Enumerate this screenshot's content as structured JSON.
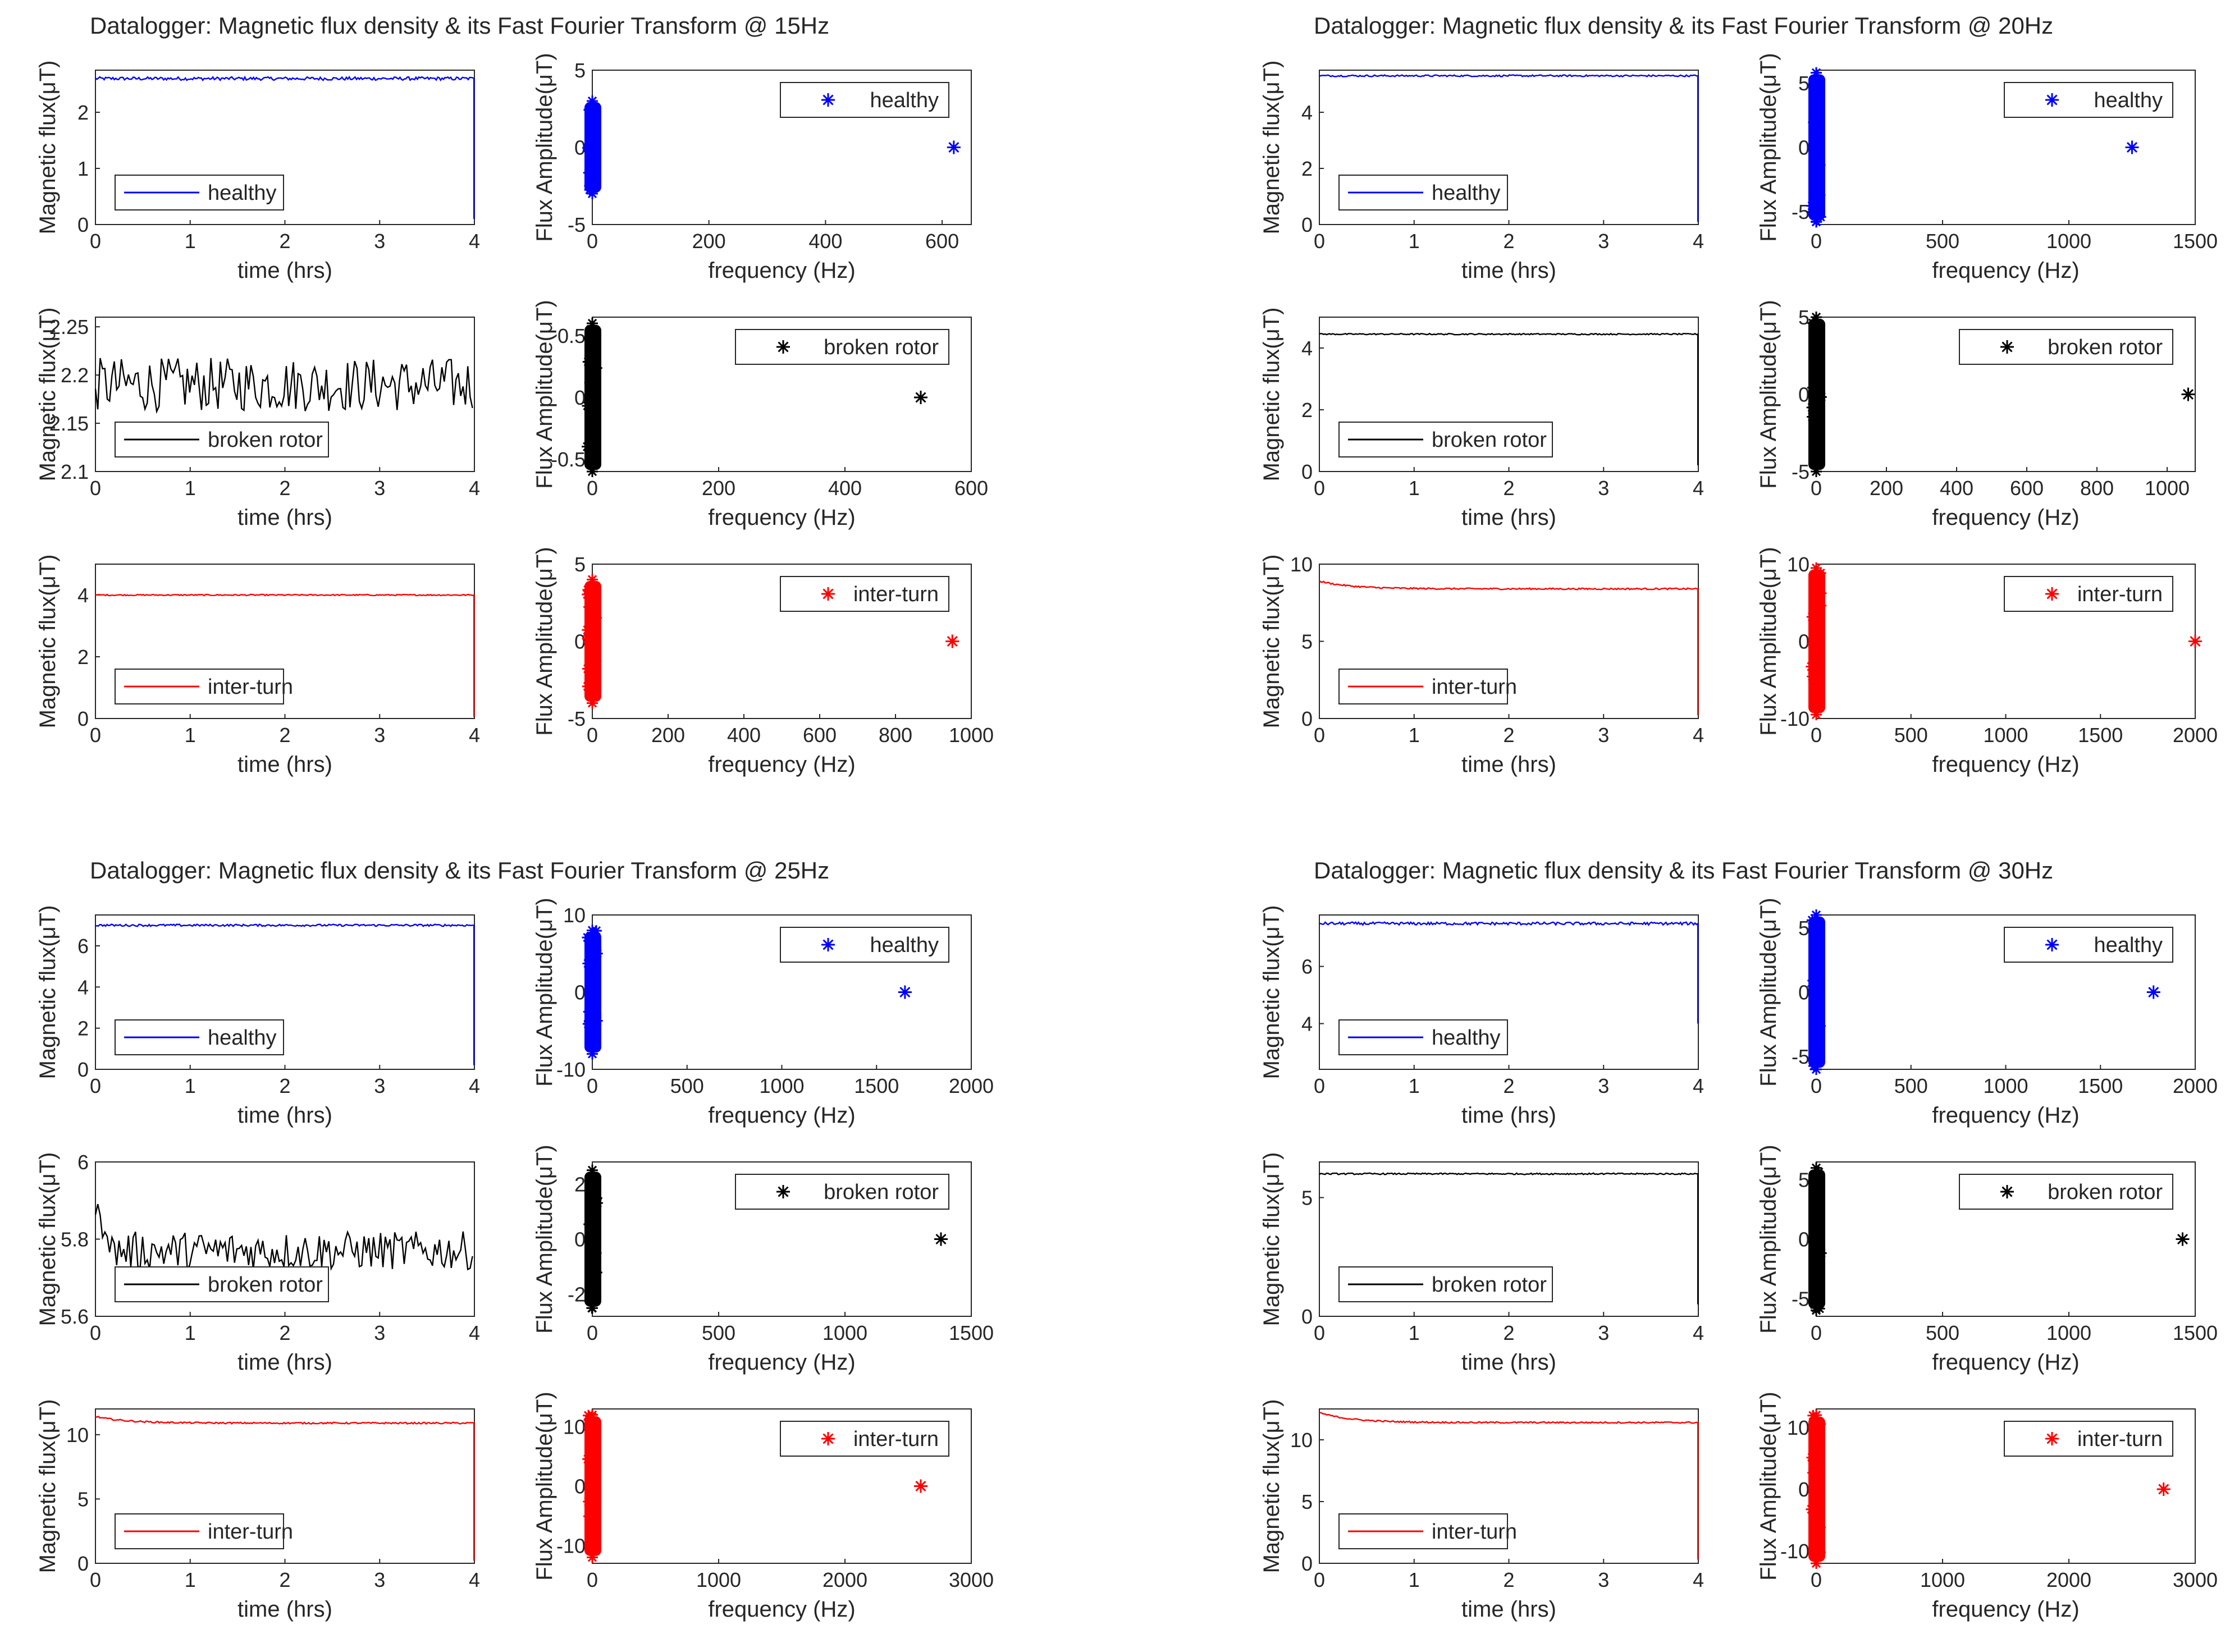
{
  "colors": {
    "blue": "#0000ff",
    "black": "#000000",
    "red": "#ff0000",
    "axis": "#262626",
    "legendBorder": "#262626",
    "background": "#ffffff"
  },
  "axis_labels": {
    "time_x": "time (hrs)",
    "freq_x": "frequency (Hz)",
    "time_y": "Magnetic flux(μT)",
    "freq_y": "Flux Amplitude(μT)"
  },
  "chart_data": [
    {
      "title": "Datalogger: Magnetic flux density & its Fast Fourier Transform @ 15Hz",
      "rows": [
        {
          "condition": "healthy",
          "color": "blue",
          "time": {
            "type": "line",
            "xlim": [
              0,
              4
            ],
            "ylim": [
              0,
              2.75
            ],
            "xticks": [
              0,
              1,
              2,
              3,
              4
            ],
            "yticks": [
              0,
              1,
              2
            ],
            "legend": "healthy",
            "baseline": 2.6,
            "noise": 0.03,
            "drop_to": 0.1,
            "mode": "steady"
          },
          "fft": {
            "type": "scatter",
            "xlim": [
              0,
              650
            ],
            "ylim": [
              -5,
              5
            ],
            "xticks": [
              0,
              200,
              400,
              600
            ],
            "yticks": [
              -5,
              0,
              5
            ],
            "legend": "healthy",
            "cluster_x": 0,
            "cluster_amp": 3,
            "outlier": [
              620,
              0
            ]
          }
        },
        {
          "condition": "broken rotor",
          "color": "black",
          "time": {
            "type": "line",
            "xlim": [
              0,
              4
            ],
            "ylim": [
              2.1,
              2.26
            ],
            "xticks": [
              0,
              1,
              2,
              3,
              4
            ],
            "yticks": [
              2.1,
              2.15,
              2.2,
              2.25
            ],
            "legend": "broken rotor",
            "baseline": 2.19,
            "noise": 0.028,
            "mode": "noisy"
          },
          "fft": {
            "type": "scatter",
            "xlim": [
              0,
              600
            ],
            "ylim": [
              -0.6,
              0.65
            ],
            "xticks": [
              0,
              200,
              400,
              600
            ],
            "yticks": [
              -0.5,
              0,
              0.5
            ],
            "legend": "broken rotor",
            "cluster_x": 0,
            "cluster_amp": 0.6,
            "outlier": [
              520,
              0
            ]
          }
        },
        {
          "condition": "inter-turn",
          "color": "red",
          "time": {
            "type": "line",
            "xlim": [
              0,
              4
            ],
            "ylim": [
              0,
              5
            ],
            "xticks": [
              0,
              1,
              2,
              3,
              4
            ],
            "yticks": [
              0,
              2,
              4
            ],
            "legend": "inter-turn",
            "baseline": 4.0,
            "noise": 0.02,
            "drop_to": 0.05,
            "mode": "steady"
          },
          "fft": {
            "type": "scatter",
            "xlim": [
              0,
              1000
            ],
            "ylim": [
              -5,
              5
            ],
            "xticks": [
              0,
              200,
              400,
              600,
              800,
              1000
            ],
            "yticks": [
              -5,
              0,
              5
            ],
            "legend": "inter-turn",
            "cluster_x": 0,
            "cluster_amp": 4,
            "outlier": [
              950,
              0
            ]
          }
        }
      ]
    },
    {
      "title": "Datalogger: Magnetic flux density & its Fast Fourier Transform @ 20Hz",
      "rows": [
        {
          "condition": "healthy",
          "color": "blue",
          "time": {
            "type": "line",
            "xlim": [
              0,
              4
            ],
            "ylim": [
              0,
              5.5
            ],
            "xticks": [
              0,
              1,
              2,
              3,
              4
            ],
            "yticks": [
              0,
              2,
              4
            ],
            "legend": "healthy",
            "baseline": 5.3,
            "noise": 0.03,
            "drop_to": 0.1,
            "mode": "steady"
          },
          "fft": {
            "type": "scatter",
            "xlim": [
              0,
              1500
            ],
            "ylim": [
              -6,
              6
            ],
            "xticks": [
              0,
              500,
              1000,
              1500
            ],
            "yticks": [
              -5,
              0,
              5
            ],
            "legend": "healthy",
            "cluster_x": 0,
            "cluster_amp": 5.8,
            "outlier": [
              1250,
              0
            ]
          }
        },
        {
          "condition": "broken rotor",
          "color": "black",
          "time": {
            "type": "line",
            "xlim": [
              0,
              4
            ],
            "ylim": [
              0,
              5
            ],
            "xticks": [
              0,
              1,
              2,
              3,
              4
            ],
            "yticks": [
              0,
              2,
              4
            ],
            "legend": "broken rotor",
            "baseline": 4.45,
            "noise": 0.02,
            "drop_to": 0.2,
            "mode": "steady"
          },
          "fft": {
            "type": "scatter",
            "xlim": [
              0,
              1080
            ],
            "ylim": [
              -5,
              5
            ],
            "xticks": [
              0,
              200,
              400,
              600,
              800,
              1000
            ],
            "yticks": [
              -5,
              0,
              5
            ],
            "legend": "broken rotor",
            "cluster_x": 0,
            "cluster_amp": 5,
            "outlier": [
              1060,
              0
            ]
          }
        },
        {
          "condition": "inter-turn",
          "color": "red",
          "time": {
            "type": "line",
            "xlim": [
              0,
              4
            ],
            "ylim": [
              0,
              10
            ],
            "xticks": [
              0,
              1,
              2,
              3,
              4
            ],
            "yticks": [
              0,
              5,
              10
            ],
            "legend": "inter-turn",
            "baseline": 8.4,
            "noise": 0.05,
            "drop_to": 0.2,
            "mode": "decay",
            "start": 8.9
          },
          "fft": {
            "type": "scatter",
            "xlim": [
              0,
              2000
            ],
            "ylim": [
              -10,
              10
            ],
            "xticks": [
              0,
              500,
              1000,
              1500,
              2000
            ],
            "yticks": [
              -10,
              0,
              10
            ],
            "legend": "inter-turn",
            "cluster_x": 0,
            "cluster_amp": 9.5,
            "outlier": [
              2000,
              0
            ]
          }
        }
      ]
    },
    {
      "title": "Datalogger: Magnetic flux density & its Fast Fourier Transform @ 25Hz",
      "rows": [
        {
          "condition": "healthy",
          "color": "blue",
          "time": {
            "type": "line",
            "xlim": [
              0,
              4
            ],
            "ylim": [
              0,
              7.5
            ],
            "xticks": [
              0,
              1,
              2,
              3,
              4
            ],
            "yticks": [
              0,
              2,
              4,
              6
            ],
            "legend": "healthy",
            "baseline": 7.0,
            "noise": 0.05,
            "drop_to": 0.2,
            "mode": "steady"
          },
          "fft": {
            "type": "scatter",
            "xlim": [
              0,
              2000
            ],
            "ylim": [
              -10,
              10
            ],
            "xticks": [
              0,
              500,
              1000,
              1500,
              2000
            ],
            "yticks": [
              -10,
              0,
              10
            ],
            "legend": "healthy",
            "cluster_x": 0,
            "cluster_amp": 8,
            "outlier": [
              1650,
              0
            ]
          }
        },
        {
          "condition": "broken rotor",
          "color": "black",
          "time": {
            "type": "line",
            "xlim": [
              0,
              4
            ],
            "ylim": [
              5.6,
              6
            ],
            "xticks": [
              0,
              1,
              2,
              3,
              4
            ],
            "yticks": [
              5.6,
              5.8,
              6
            ],
            "legend": "broken rotor",
            "baseline": 5.77,
            "noise": 0.05,
            "mode": "noisy",
            "start": 5.85
          },
          "fft": {
            "type": "scatter",
            "xlim": [
              0,
              1500
            ],
            "ylim": [
              -2.8,
              2.8
            ],
            "xticks": [
              0,
              500,
              1000,
              1500
            ],
            "yticks": [
              -2,
              0,
              2
            ],
            "legend": "broken rotor",
            "cluster_x": 0,
            "cluster_amp": 2.5,
            "outlier": [
              1380,
              0
            ]
          }
        },
        {
          "condition": "inter-turn",
          "color": "red",
          "time": {
            "type": "line",
            "xlim": [
              0,
              4
            ],
            "ylim": [
              0,
              12
            ],
            "xticks": [
              0,
              1,
              2,
              3,
              4
            ],
            "yticks": [
              0,
              5,
              10
            ],
            "legend": "inter-turn",
            "baseline": 10.9,
            "noise": 0.06,
            "drop_to": 0.2,
            "mode": "decay",
            "start": 11.4
          },
          "fft": {
            "type": "scatter",
            "xlim": [
              0,
              3000
            ],
            "ylim": [
              -13,
              13
            ],
            "xticks": [
              0,
              1000,
              2000,
              3000
            ],
            "yticks": [
              -10,
              0,
              10
            ],
            "legend": "inter-turn",
            "cluster_x": 0,
            "cluster_amp": 12,
            "outlier": [
              2600,
              0
            ]
          }
        }
      ]
    },
    {
      "title": "Datalogger: Magnetic flux density & its Fast Fourier Transform @ 30Hz",
      "rows": [
        {
          "condition": "healthy",
          "color": "blue",
          "time": {
            "type": "line",
            "xlim": [
              0,
              4
            ],
            "ylim": [
              2.4,
              7.8
            ],
            "xticks": [
              0,
              1,
              2,
              3,
              4
            ],
            "yticks": [
              4,
              6
            ],
            "legend": "healthy",
            "baseline": 7.5,
            "noise": 0.05,
            "drop_to": 4.0,
            "mode": "steady"
          },
          "fft": {
            "type": "scatter",
            "xlim": [
              0,
              2000
            ],
            "ylim": [
              -6,
              6
            ],
            "xticks": [
              0,
              500,
              1000,
              1500,
              2000
            ],
            "yticks": [
              -5,
              0,
              5
            ],
            "legend": "healthy",
            "cluster_x": 0,
            "cluster_amp": 6,
            "outlier": [
              1780,
              0
            ]
          }
        },
        {
          "condition": "broken rotor",
          "color": "black",
          "time": {
            "type": "line",
            "xlim": [
              0,
              4
            ],
            "ylim": [
              0,
              6.5
            ],
            "xticks": [
              0,
              1,
              2,
              3,
              4
            ],
            "yticks": [
              0,
              5
            ],
            "legend": "broken rotor",
            "baseline": 6.0,
            "noise": 0.03,
            "drop_to": 0.5,
            "mode": "steady"
          },
          "fft": {
            "type": "scatter",
            "xlim": [
              0,
              1500
            ],
            "ylim": [
              -6.5,
              6.5
            ],
            "xticks": [
              0,
              500,
              1000,
              1500
            ],
            "yticks": [
              -5,
              0,
              5
            ],
            "legend": "broken rotor",
            "cluster_x": 0,
            "cluster_amp": 6,
            "outlier": [
              1450,
              0
            ]
          }
        },
        {
          "condition": "inter-turn",
          "color": "red",
          "time": {
            "type": "line",
            "xlim": [
              0,
              4
            ],
            "ylim": [
              0,
              12.5
            ],
            "xticks": [
              0,
              1,
              2,
              3,
              4
            ],
            "yticks": [
              0,
              5,
              10
            ],
            "legend": "inter-turn",
            "baseline": 11.4,
            "noise": 0.06,
            "drop_to": 0.3,
            "mode": "decay",
            "start": 12.2
          },
          "fft": {
            "type": "scatter",
            "xlim": [
              0,
              3000
            ],
            "ylim": [
              -12,
              13
            ],
            "xticks": [
              0,
              1000,
              2000,
              3000
            ],
            "yticks": [
              -10,
              0,
              10
            ],
            "legend": "inter-turn",
            "cluster_x": 0,
            "cluster_amp": 12,
            "outlier": [
              2750,
              0
            ]
          }
        }
      ]
    }
  ]
}
